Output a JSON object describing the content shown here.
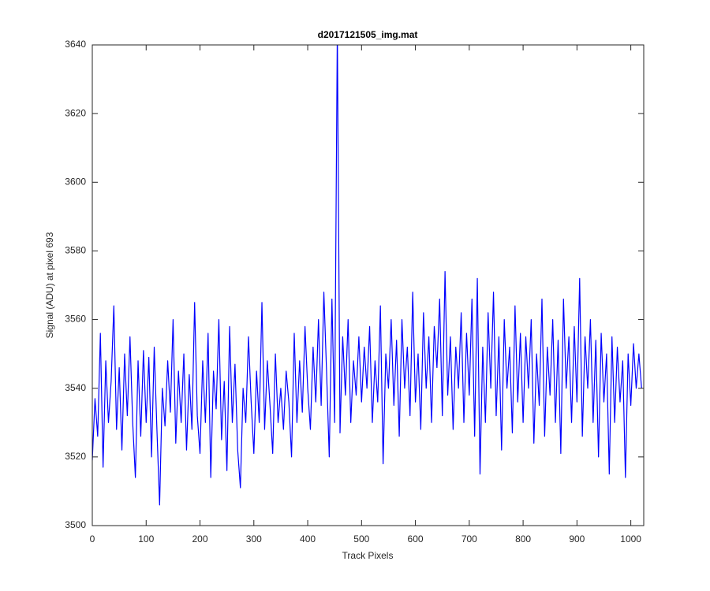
{
  "chart_data": {
    "type": "line",
    "title": "d2017121505_img.mat",
    "x_label": "Track Pixels",
    "y_label": "Signal (ADU) at pixel 693",
    "xlim": [
      0,
      1024
    ],
    "ylim": [
      3500,
      3640
    ],
    "xticks": [
      0,
      100,
      200,
      300,
      400,
      500,
      600,
      700,
      800,
      900,
      1000
    ],
    "yticks": [
      3500,
      3520,
      3540,
      3560,
      3580,
      3600,
      3620,
      3640
    ],
    "x": [
      0,
      5,
      10,
      15,
      20,
      25,
      30,
      35,
      40,
      45,
      50,
      55,
      60,
      65,
      70,
      75,
      80,
      85,
      90,
      95,
      100,
      105,
      110,
      115,
      120,
      125,
      130,
      135,
      140,
      145,
      150,
      155,
      160,
      165,
      170,
      175,
      180,
      185,
      190,
      195,
      200,
      205,
      210,
      215,
      220,
      225,
      230,
      235,
      240,
      245,
      250,
      255,
      260,
      265,
      270,
      275,
      280,
      285,
      290,
      295,
      300,
      305,
      310,
      315,
      320,
      325,
      330,
      335,
      340,
      345,
      350,
      355,
      360,
      365,
      370,
      375,
      380,
      385,
      390,
      395,
      400,
      405,
      410,
      415,
      420,
      425,
      430,
      435,
      440,
      445,
      450,
      455,
      460,
      465,
      470,
      475,
      480,
      485,
      490,
      495,
      500,
      505,
      510,
      515,
      520,
      525,
      530,
      535,
      540,
      545,
      550,
      555,
      560,
      565,
      570,
      575,
      580,
      585,
      590,
      595,
      600,
      605,
      610,
      615,
      620,
      625,
      630,
      635,
      640,
      645,
      650,
      655,
      660,
      665,
      670,
      675,
      680,
      685,
      690,
      695,
      700,
      705,
      710,
      715,
      720,
      725,
      730,
      735,
      740,
      745,
      750,
      755,
      760,
      765,
      770,
      775,
      780,
      785,
      790,
      795,
      800,
      805,
      810,
      815,
      820,
      825,
      830,
      835,
      840,
      845,
      850,
      855,
      860,
      865,
      870,
      875,
      880,
      885,
      890,
      895,
      900,
      905,
      910,
      915,
      920,
      925,
      930,
      935,
      940,
      945,
      950,
      955,
      960,
      965,
      970,
      975,
      980,
      985,
      990,
      995,
      1000,
      1005,
      1010,
      1015,
      1020
    ],
    "series": [
      {
        "name": "signal",
        "color": "#0000ff",
        "values": [
          3519,
          3537,
          3526,
          3556,
          3517,
          3548,
          3530,
          3542,
          3564,
          3528,
          3546,
          3522,
          3550,
          3532,
          3555,
          3530,
          3514,
          3548,
          3526,
          3551,
          3530,
          3549,
          3520,
          3552,
          3528,
          3506,
          3540,
          3529,
          3548,
          3533,
          3560,
          3524,
          3545,
          3530,
          3550,
          3522,
          3544,
          3528,
          3565,
          3532,
          3521,
          3548,
          3530,
          3556,
          3514,
          3545,
          3534,
          3560,
          3525,
          3542,
          3516,
          3558,
          3530,
          3547,
          3522,
          3511,
          3540,
          3530,
          3555,
          3536,
          3521,
          3545,
          3530,
          3565,
          3528,
          3548,
          3535,
          3521,
          3550,
          3530,
          3540,
          3528,
          3545,
          3536,
          3520,
          3556,
          3530,
          3548,
          3533,
          3558,
          3540,
          3528,
          3552,
          3536,
          3560,
          3535,
          3568,
          3545,
          3520,
          3566,
          3530,
          3645,
          3527,
          3555,
          3538,
          3560,
          3530,
          3548,
          3538,
          3555,
          3536,
          3552,
          3540,
          3558,
          3530,
          3548,
          3536,
          3564,
          3518,
          3550,
          3540,
          3560,
          3535,
          3554,
          3526,
          3560,
          3540,
          3552,
          3532,
          3568,
          3536,
          3550,
          3528,
          3562,
          3540,
          3555,
          3530,
          3558,
          3546,
          3566,
          3532,
          3574,
          3538,
          3555,
          3528,
          3552,
          3540,
          3562,
          3530,
          3556,
          3538,
          3566,
          3526,
          3572,
          3515,
          3552,
          3530,
          3562,
          3540,
          3568,
          3532,
          3555,
          3522,
          3560,
          3540,
          3552,
          3527,
          3564,
          3536,
          3556,
          3530,
          3555,
          3540,
          3560,
          3524,
          3550,
          3535,
          3566,
          3526,
          3552,
          3538,
          3560,
          3530,
          3554,
          3521,
          3566,
          3540,
          3555,
          3530,
          3558,
          3536,
          3572,
          3526,
          3555,
          3540,
          3560,
          3530,
          3554,
          3520,
          3556,
          3536,
          3550,
          3515,
          3555,
          3530,
          3552,
          3536,
          3548,
          3514,
          3550,
          3535,
          3553,
          3540,
          3550,
          3540
        ]
      }
    ]
  }
}
